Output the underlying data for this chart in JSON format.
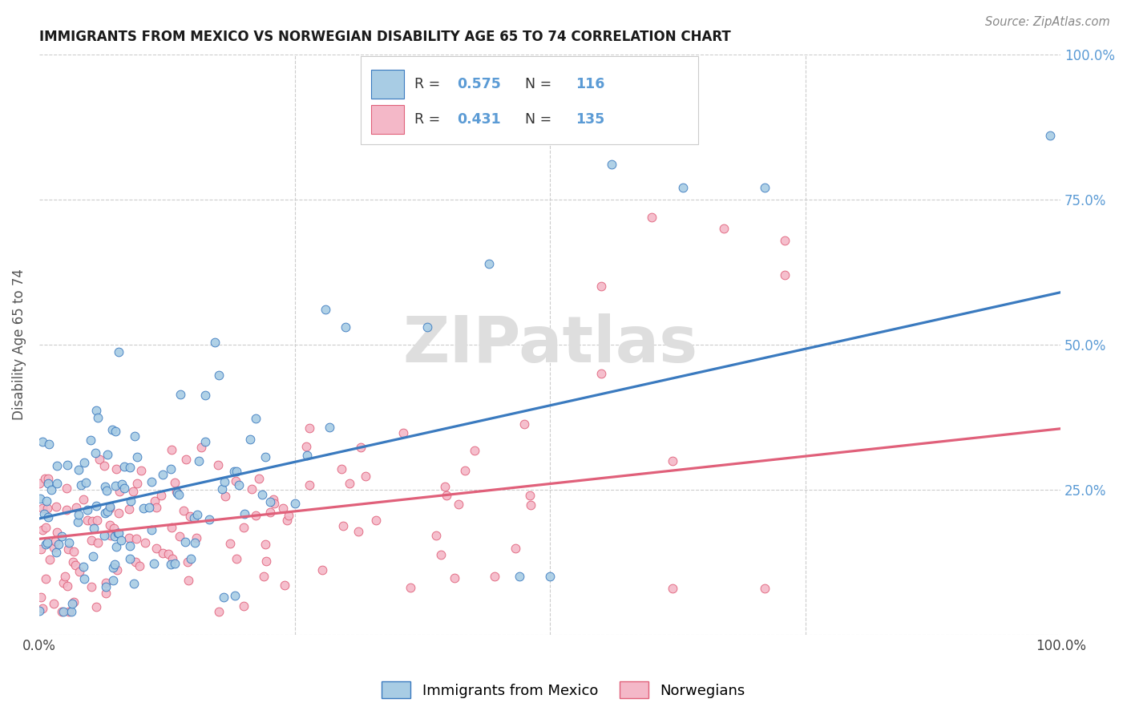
{
  "title": "IMMIGRANTS FROM MEXICO VS NORWEGIAN DISABILITY AGE 65 TO 74 CORRELATION CHART",
  "source": "Source: ZipAtlas.com",
  "ylabel": "Disability Age 65 to 74",
  "watermark": "ZIPatlas",
  "blue_R": 0.575,
  "blue_N": 116,
  "pink_R": 0.431,
  "pink_N": 135,
  "blue_color": "#a8cce4",
  "pink_color": "#f4b8c8",
  "blue_line_color": "#3a7abf",
  "pink_line_color": "#e0607a",
  "legend_label_blue": "Immigrants from Mexico",
  "legend_label_pink": "Norwegians",
  "blue_intercept": 0.2,
  "blue_slope": 0.39,
  "pink_intercept": 0.165,
  "pink_slope": 0.19,
  "title_fontsize": 12,
  "axis_label_fontsize": 12,
  "tick_fontsize": 12,
  "right_tick_color": "#5b9bd5"
}
